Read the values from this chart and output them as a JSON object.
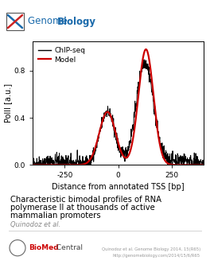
{
  "fig_width": 2.64,
  "fig_height": 3.52,
  "dpi": 100,
  "plot_outer_bg": "#dce8f0",
  "plot_face": "white",
  "x_range": [
    -400,
    400
  ],
  "y_range": [
    0.0,
    1.05
  ],
  "x_ticks": [
    -250,
    0,
    250
  ],
  "y_ticks": [
    0.0,
    0.4,
    0.8
  ],
  "xlabel": "Distance from annotated TSS [bp]",
  "ylabel": "PolII [a.u.]",
  "chipseq_color": "#000000",
  "model_color": "#cc0000",
  "title_text": "Characteristic bimodal profiles of RNA\npolymerase II at thousands of active\nmammalian promoters",
  "author_text": "Quinodoz et al.",
  "citation_line1": "Quinodoz et al. Genome Biology 2014, 15(R65)",
  "citation_line2": "http://genomebiology.com/2014/15/6/R65",
  "logo_blue": "#1a6aab",
  "biomed_red": "#cc0000",
  "separator_color": "#cccccc",
  "author_color": "#888888",
  "citation_color": "#999999"
}
